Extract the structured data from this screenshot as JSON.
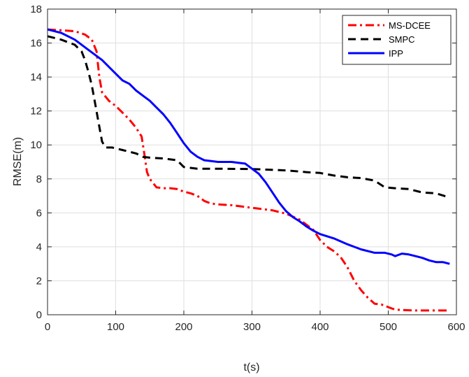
{
  "chart_data": {
    "type": "line",
    "title": "",
    "xlabel": "t(s)",
    "ylabel": "RMSE(m)",
    "xlim": [
      0,
      600
    ],
    "ylim": [
      0,
      18
    ],
    "xticks": [
      0,
      100,
      200,
      300,
      400,
      500,
      600
    ],
    "yticks": [
      0,
      2,
      4,
      6,
      8,
      10,
      12,
      14,
      16,
      18
    ],
    "grid": true,
    "legend_position": "top-right",
    "series": [
      {
        "name": "MS-DCEE",
        "color": "#ff0000",
        "style": "dash-dot",
        "points": [
          [
            0,
            16.8
          ],
          [
            20,
            16.75
          ],
          [
            40,
            16.7
          ],
          [
            55,
            16.5
          ],
          [
            65,
            16.2
          ],
          [
            72,
            15.5
          ],
          [
            76,
            14.0
          ],
          [
            80,
            13.1
          ],
          [
            90,
            12.6
          ],
          [
            100,
            12.3
          ],
          [
            110,
            11.9
          ],
          [
            120,
            11.5
          ],
          [
            130,
            11.0
          ],
          [
            138,
            10.5
          ],
          [
            142,
            9.5
          ],
          [
            146,
            8.4
          ],
          [
            150,
            8.0
          ],
          [
            160,
            7.5
          ],
          [
            170,
            7.45
          ],
          [
            180,
            7.45
          ],
          [
            190,
            7.4
          ],
          [
            200,
            7.25
          ],
          [
            210,
            7.15
          ],
          [
            220,
            7.0
          ],
          [
            230,
            6.7
          ],
          [
            240,
            6.55
          ],
          [
            250,
            6.5
          ],
          [
            270,
            6.45
          ],
          [
            300,
            6.3
          ],
          [
            330,
            6.15
          ],
          [
            350,
            5.95
          ],
          [
            370,
            5.6
          ],
          [
            380,
            5.3
          ],
          [
            390,
            5.0
          ],
          [
            400,
            4.4
          ],
          [
            410,
            4.0
          ],
          [
            420,
            3.75
          ],
          [
            430,
            3.4
          ],
          [
            440,
            2.8
          ],
          [
            450,
            2.0
          ],
          [
            460,
            1.45
          ],
          [
            470,
            1.0
          ],
          [
            480,
            0.65
          ],
          [
            490,
            0.6
          ],
          [
            500,
            0.45
          ],
          [
            510,
            0.3
          ],
          [
            520,
            0.28
          ],
          [
            540,
            0.25
          ],
          [
            560,
            0.25
          ],
          [
            580,
            0.25
          ],
          [
            590,
            0.25
          ]
        ]
      },
      {
        "name": "SMPC",
        "color": "#000000",
        "style": "dashed",
        "points": [
          [
            0,
            16.4
          ],
          [
            20,
            16.2
          ],
          [
            40,
            15.9
          ],
          [
            50,
            15.5
          ],
          [
            55,
            15.0
          ],
          [
            60,
            14.3
          ],
          [
            65,
            13.5
          ],
          [
            70,
            12.4
          ],
          [
            75,
            11.3
          ],
          [
            80,
            10.2
          ],
          [
            85,
            9.85
          ],
          [
            95,
            9.85
          ],
          [
            100,
            9.8
          ],
          [
            110,
            9.7
          ],
          [
            120,
            9.6
          ],
          [
            130,
            9.5
          ],
          [
            140,
            9.3
          ],
          [
            150,
            9.25
          ],
          [
            170,
            9.2
          ],
          [
            190,
            9.1
          ],
          [
            200,
            8.7
          ],
          [
            220,
            8.6
          ],
          [
            250,
            8.6
          ],
          [
            300,
            8.58
          ],
          [
            350,
            8.5
          ],
          [
            380,
            8.4
          ],
          [
            400,
            8.35
          ],
          [
            420,
            8.2
          ],
          [
            440,
            8.1
          ],
          [
            460,
            8.05
          ],
          [
            480,
            7.9
          ],
          [
            495,
            7.5
          ],
          [
            510,
            7.45
          ],
          [
            530,
            7.4
          ],
          [
            550,
            7.2
          ],
          [
            570,
            7.15
          ],
          [
            590,
            6.9
          ]
        ]
      },
      {
        "name": "IPP",
        "color": "#0000ff",
        "style": "solid",
        "points": [
          [
            0,
            16.8
          ],
          [
            20,
            16.6
          ],
          [
            40,
            16.2
          ],
          [
            60,
            15.6
          ],
          [
            80,
            15.0
          ],
          [
            100,
            14.2
          ],
          [
            110,
            13.8
          ],
          [
            120,
            13.6
          ],
          [
            130,
            13.2
          ],
          [
            140,
            12.9
          ],
          [
            150,
            12.6
          ],
          [
            160,
            12.2
          ],
          [
            170,
            11.8
          ],
          [
            180,
            11.3
          ],
          [
            190,
            10.7
          ],
          [
            200,
            10.1
          ],
          [
            210,
            9.6
          ],
          [
            220,
            9.3
          ],
          [
            230,
            9.1
          ],
          [
            240,
            9.05
          ],
          [
            250,
            9.0
          ],
          [
            270,
            9.0
          ],
          [
            280,
            8.95
          ],
          [
            290,
            8.9
          ],
          [
            300,
            8.6
          ],
          [
            310,
            8.3
          ],
          [
            320,
            7.8
          ],
          [
            330,
            7.2
          ],
          [
            340,
            6.6
          ],
          [
            350,
            6.1
          ],
          [
            360,
            5.75
          ],
          [
            370,
            5.5
          ],
          [
            380,
            5.2
          ],
          [
            390,
            4.95
          ],
          [
            400,
            4.75
          ],
          [
            420,
            4.5
          ],
          [
            440,
            4.15
          ],
          [
            460,
            3.85
          ],
          [
            480,
            3.65
          ],
          [
            495,
            3.65
          ],
          [
            505,
            3.55
          ],
          [
            510,
            3.45
          ],
          [
            520,
            3.6
          ],
          [
            530,
            3.55
          ],
          [
            540,
            3.45
          ],
          [
            550,
            3.35
          ],
          [
            560,
            3.2
          ],
          [
            570,
            3.1
          ],
          [
            580,
            3.1
          ],
          [
            590,
            3.0
          ]
        ]
      }
    ]
  }
}
